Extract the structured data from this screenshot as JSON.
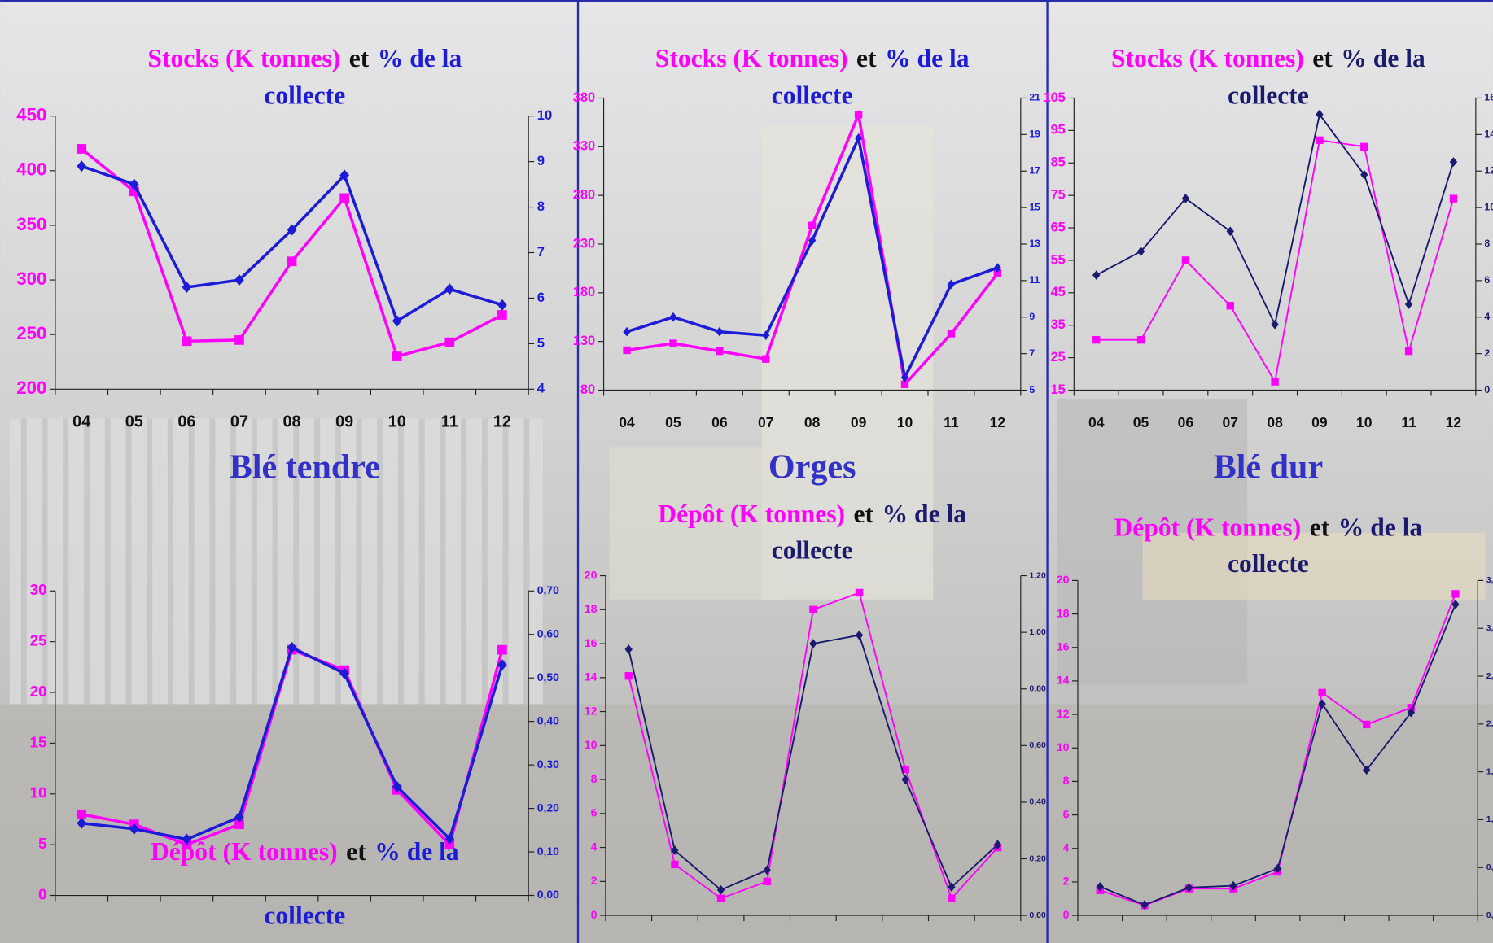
{
  "chart_data": [
    {
      "type": "line",
      "title": [
        [
          "Stocks (K tonnes)",
          "et",
          "% de la"
        ],
        [
          "collecte"
        ]
      ],
      "section": "Blé tendre",
      "categories": [
        "04",
        "05",
        "06",
        "07",
        "08",
        "09",
        "10",
        "11",
        "12"
      ],
      "ylim": [
        200,
        450
      ],
      "yticks": [
        200,
        250,
        300,
        350,
        400,
        450
      ],
      "y2lim": [
        4,
        10
      ],
      "y2ticks": [
        4,
        5,
        6,
        7,
        8,
        9,
        10
      ],
      "series": [
        {
          "color": "#ff00ff",
          "marker": "square",
          "values": [
            420,
            381,
            244,
            245,
            317,
            375,
            230,
            243,
            268
          ]
        },
        {
          "color": "#1c1cd8",
          "marker": "diamond",
          "axis": "y2",
          "values": [
            8.9,
            8.5,
            6.24,
            6.4,
            7.5,
            8.7,
            5.5,
            6.2,
            5.85
          ]
        }
      ]
    },
    {
      "type": "line",
      "title": [
        [
          "Stocks (K tonnes)",
          "et",
          "% de la"
        ],
        [
          "collecte"
        ]
      ],
      "section": "Orges",
      "categories": [
        "04",
        "05",
        "06",
        "07",
        "08",
        "09",
        "10",
        "11",
        "12"
      ],
      "ylim": [
        80,
        380
      ],
      "yticks": [
        80,
        130,
        180,
        230,
        280,
        330,
        380
      ],
      "y2lim": [
        5,
        21
      ],
      "y2ticks": [
        5,
        7,
        9,
        11,
        13,
        15,
        17,
        19,
        21
      ],
      "series": [
        {
          "color": "#ff00ff",
          "marker": "square",
          "values": [
            121,
            128,
            120,
            112,
            249,
            363,
            86,
            138,
            200
          ]
        },
        {
          "color": "#1c1cd8",
          "marker": "diamond",
          "axis": "y2",
          "values": [
            8.2,
            9.0,
            8.2,
            8.0,
            13.2,
            18.8,
            5.7,
            10.8,
            11.7
          ]
        }
      ]
    },
    {
      "type": "line",
      "title": [
        [
          "Stocks (K tonnes)",
          "et",
          "% de la"
        ],
        [
          "collecte"
        ]
      ],
      "section": "Blé dur",
      "categories": [
        "04",
        "05",
        "06",
        "07",
        "08",
        "09",
        "10",
        "11",
        "12"
      ],
      "ylim": [
        15,
        105
      ],
      "yticks": [
        15,
        25,
        35,
        45,
        55,
        65,
        75,
        85,
        95,
        105
      ],
      "y2lim": [
        0,
        16
      ],
      "y2ticks": [
        0,
        2,
        4,
        6,
        8,
        10,
        12,
        14,
        16
      ],
      "series": [
        {
          "color": "#ff00ff",
          "marker": "square",
          "values": [
            30.5,
            30.5,
            55,
            41,
            17.6,
            92,
            90,
            27,
            74
          ]
        },
        {
          "color": "#1a1a6e",
          "marker": "diamond",
          "axis": "y2",
          "values": [
            6.3,
            7.6,
            10.5,
            8.7,
            3.6,
            15.1,
            11.8,
            4.7,
            12.5
          ]
        }
      ]
    },
    {
      "type": "line",
      "title": [
        [
          "Dépôt (K tonnes)",
          "et",
          "% de la"
        ],
        [
          "collecte"
        ]
      ],
      "ylim": [
        0,
        30
      ],
      "yticks": [
        0,
        5,
        10,
        15,
        20,
        25,
        30
      ],
      "y2lim": [
        0,
        0.7
      ],
      "y2ticks": [
        {
          "value": 0,
          "label": "0,00"
        },
        {
          "value": 0.1,
          "label": "0,10"
        },
        {
          "value": 0.2,
          "label": "0,20"
        },
        {
          "value": 0.3,
          "label": "0,30"
        },
        {
          "value": 0.4,
          "label": "0,40"
        },
        {
          "value": 0.5,
          "label": "0,50"
        },
        {
          "value": 0.6,
          "label": "0,60"
        },
        {
          "value": 0.7,
          "label": "0,70"
        }
      ],
      "series": [
        {
          "color": "#ff00ff",
          "marker": "square",
          "values": [
            8.0,
            7.0,
            5.0,
            7.0,
            24.2,
            22.2,
            10.4,
            5.0,
            24.2
          ]
        },
        {
          "color": "#1c1cd8",
          "marker": "diamond",
          "axis": "y2",
          "values": [
            0.166,
            0.153,
            0.129,
            0.18,
            0.57,
            0.51,
            0.25,
            0.13,
            0.53
          ]
        }
      ]
    },
    {
      "type": "line",
      "title": [
        [
          "Dépôt (K tonnes)",
          "et",
          "% de la"
        ],
        [
          "collecte"
        ]
      ],
      "ylim": [
        0,
        20
      ],
      "yticks": [
        0,
        2,
        4,
        6,
        8,
        10,
        12,
        14,
        16,
        18,
        20
      ],
      "y2lim": [
        0,
        1.2
      ],
      "y2ticks": [
        {
          "value": 0,
          "label": "0,00"
        },
        {
          "value": 0.2,
          "label": "0,20"
        },
        {
          "value": 0.4,
          "label": "0,40"
        },
        {
          "value": 0.6,
          "label": "0,60"
        },
        {
          "value": 0.8,
          "label": "0,80"
        },
        {
          "value": 1.0,
          "label": "1,00"
        },
        {
          "value": 1.2,
          "label": "1,20"
        }
      ],
      "series": [
        {
          "color": "#ff00ff",
          "marker": "square",
          "values": [
            14.1,
            3.0,
            1.0,
            2.0,
            18.0,
            19.0,
            8.6,
            1.0,
            4.0
          ]
        },
        {
          "color": "#1a1a6e",
          "marker": "diamond",
          "axis": "y2",
          "values": [
            0.94,
            0.23,
            0.09,
            0.16,
            0.96,
            0.99,
            0.48,
            0.1,
            0.25
          ]
        }
      ]
    },
    {
      "type": "line",
      "title": [
        [
          "Dépôt (K tonnes)",
          "et",
          "% de la"
        ],
        [
          "collecte"
        ]
      ],
      "ylim": [
        0,
        20
      ],
      "yticks": [
        0,
        2,
        4,
        6,
        8,
        10,
        12,
        14,
        16,
        18,
        20
      ],
      "y2lim": [
        0,
        3.5
      ],
      "y2ticks": [
        {
          "value": 0,
          "label": "0,"
        },
        {
          "value": 0.5,
          "label": "0,"
        },
        {
          "value": 1.0,
          "label": "1,"
        },
        {
          "value": 1.5,
          "label": "1,"
        },
        {
          "value": 2.0,
          "label": "2,"
        },
        {
          "value": 2.5,
          "label": "2,"
        },
        {
          "value": 3.0,
          "label": "3,"
        },
        {
          "value": 3.5,
          "label": "3,"
        }
      ],
      "series": [
        {
          "color": "#ff00ff",
          "marker": "square",
          "values": [
            1.5,
            0.6,
            1.6,
            1.6,
            2.6,
            13.3,
            11.4,
            12.4,
            19.2
          ]
        },
        {
          "color": "#1a1a6e",
          "marker": "diamond",
          "axis": "y2",
          "values": [
            0.3,
            0.11,
            0.29,
            0.31,
            0.49,
            2.21,
            1.52,
            2.12,
            3.25
          ]
        }
      ]
    }
  ]
}
